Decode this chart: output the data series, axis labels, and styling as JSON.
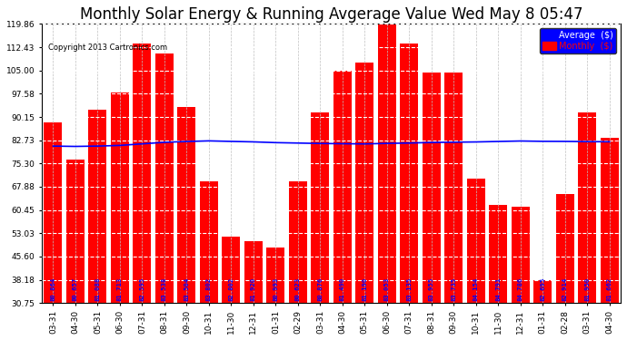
{
  "title": "Monthly Solar Energy & Running Avgerage Value Wed May 8 05:47",
  "copyright": "Copyright 2013 Cartronics.com",
  "categories": [
    "03-31",
    "04-30",
    "05-31",
    "06-30",
    "07-31",
    "08-31",
    "09-30",
    "10-31",
    "11-30",
    "12-31",
    "01-31",
    "02-29",
    "03-31",
    "04-30",
    "05-31",
    "06-30",
    "07-31",
    "08-31",
    "09-30",
    "10-31",
    "11-30",
    "12-31",
    "01-31",
    "02-28",
    "03-31",
    "04-30"
  ],
  "monthly_values": [
    88.5,
    76.5,
    92.5,
    98.0,
    113.5,
    110.5,
    93.5,
    69.5,
    52.0,
    50.5,
    48.5,
    69.5,
    91.5,
    105.0,
    107.5,
    119.86,
    113.5,
    104.5,
    104.5,
    70.5,
    62.0,
    61.5,
    38.18,
    65.5,
    91.5,
    83.5
  ],
  "average_values": [
    80.864,
    80.761,
    80.87,
    81.081,
    81.583,
    82.076,
    82.338,
    82.535,
    82.369,
    82.218,
    81.976,
    81.84,
    81.702,
    81.631,
    81.568,
    81.732,
    81.847,
    82.023,
    82.113,
    82.193,
    82.348,
    82.495,
    82.391,
    82.369,
    82.292,
    82.253
  ],
  "bar_labels": [
    "80.864",
    "80.657",
    "81.088",
    "81.713",
    "82.595",
    "83.538",
    "83.504",
    "83.802",
    "82.802",
    "81.920",
    "80.993",
    "80.623",
    "80.876",
    "81.490",
    "81.190",
    "83.053",
    "83.135",
    "83.955",
    "83.735",
    "84.154",
    "84.791",
    "84.786",
    "82.695",
    "82.914",
    "81.950",
    "81.662"
  ],
  "bar_color": "#FF0000",
  "line_color": "#0000FF",
  "background_color": "#FFFFFF",
  "plot_bg_color": "#FFFFFF",
  "grid_color": "#C0C0C0",
  "yticks": [
    30.75,
    38.18,
    45.6,
    53.03,
    60.45,
    67.88,
    75.3,
    82.73,
    90.15,
    97.58,
    105.0,
    112.43,
    119.86
  ],
  "ymin": 30.75,
  "ymax": 119.86,
  "title_fontsize": 12,
  "label_fontsize": 6.5,
  "value_fontsize": 5.2,
  "legend_avg_label": "Average  ($)",
  "legend_monthly_label": "Monthly  ($)"
}
